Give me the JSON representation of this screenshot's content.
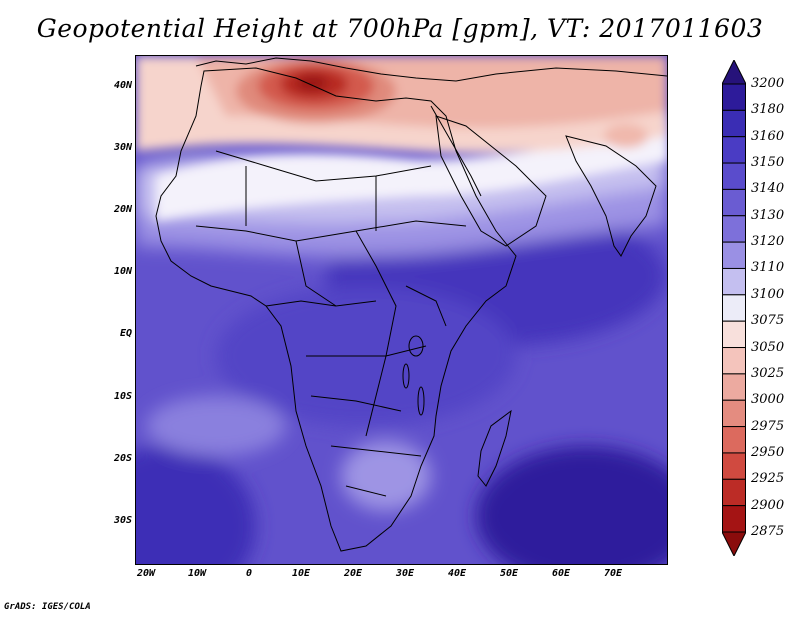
{
  "title": "Geopotential Height at 700hPa [gpm], VT: 2017011603",
  "lat_labels": [
    "40N",
    "30N",
    "20N",
    "10N",
    "EQ",
    "10S",
    "20S",
    "30S"
  ],
  "lon_labels": [
    "20W",
    "10W",
    "0",
    "10E",
    "20E",
    "30E",
    "40E",
    "50E",
    "60E",
    "70E"
  ],
  "colorbar": {
    "levels": [
      "3200",
      "3180",
      "3160",
      "3150",
      "3140",
      "3130",
      "3120",
      "3110",
      "3100",
      "3075",
      "3050",
      "3025",
      "3000",
      "2975",
      "2950",
      "2925",
      "2900",
      "2875"
    ],
    "colors": [
      "#26127a",
      "#2d1b9a",
      "#3a2db4",
      "#4a3cc4",
      "#5a4ccc",
      "#6a5cd2",
      "#7d70da",
      "#9a90e4",
      "#c4bff0",
      "#ececf8",
      "#f8e0dc",
      "#f4c4bc",
      "#ecaaa0",
      "#e48c80",
      "#dc6a5e",
      "#d04a40",
      "#bc2c26",
      "#a41414",
      "#8a0c0c"
    ]
  },
  "footer": "GrADS: IGES/COLA"
}
